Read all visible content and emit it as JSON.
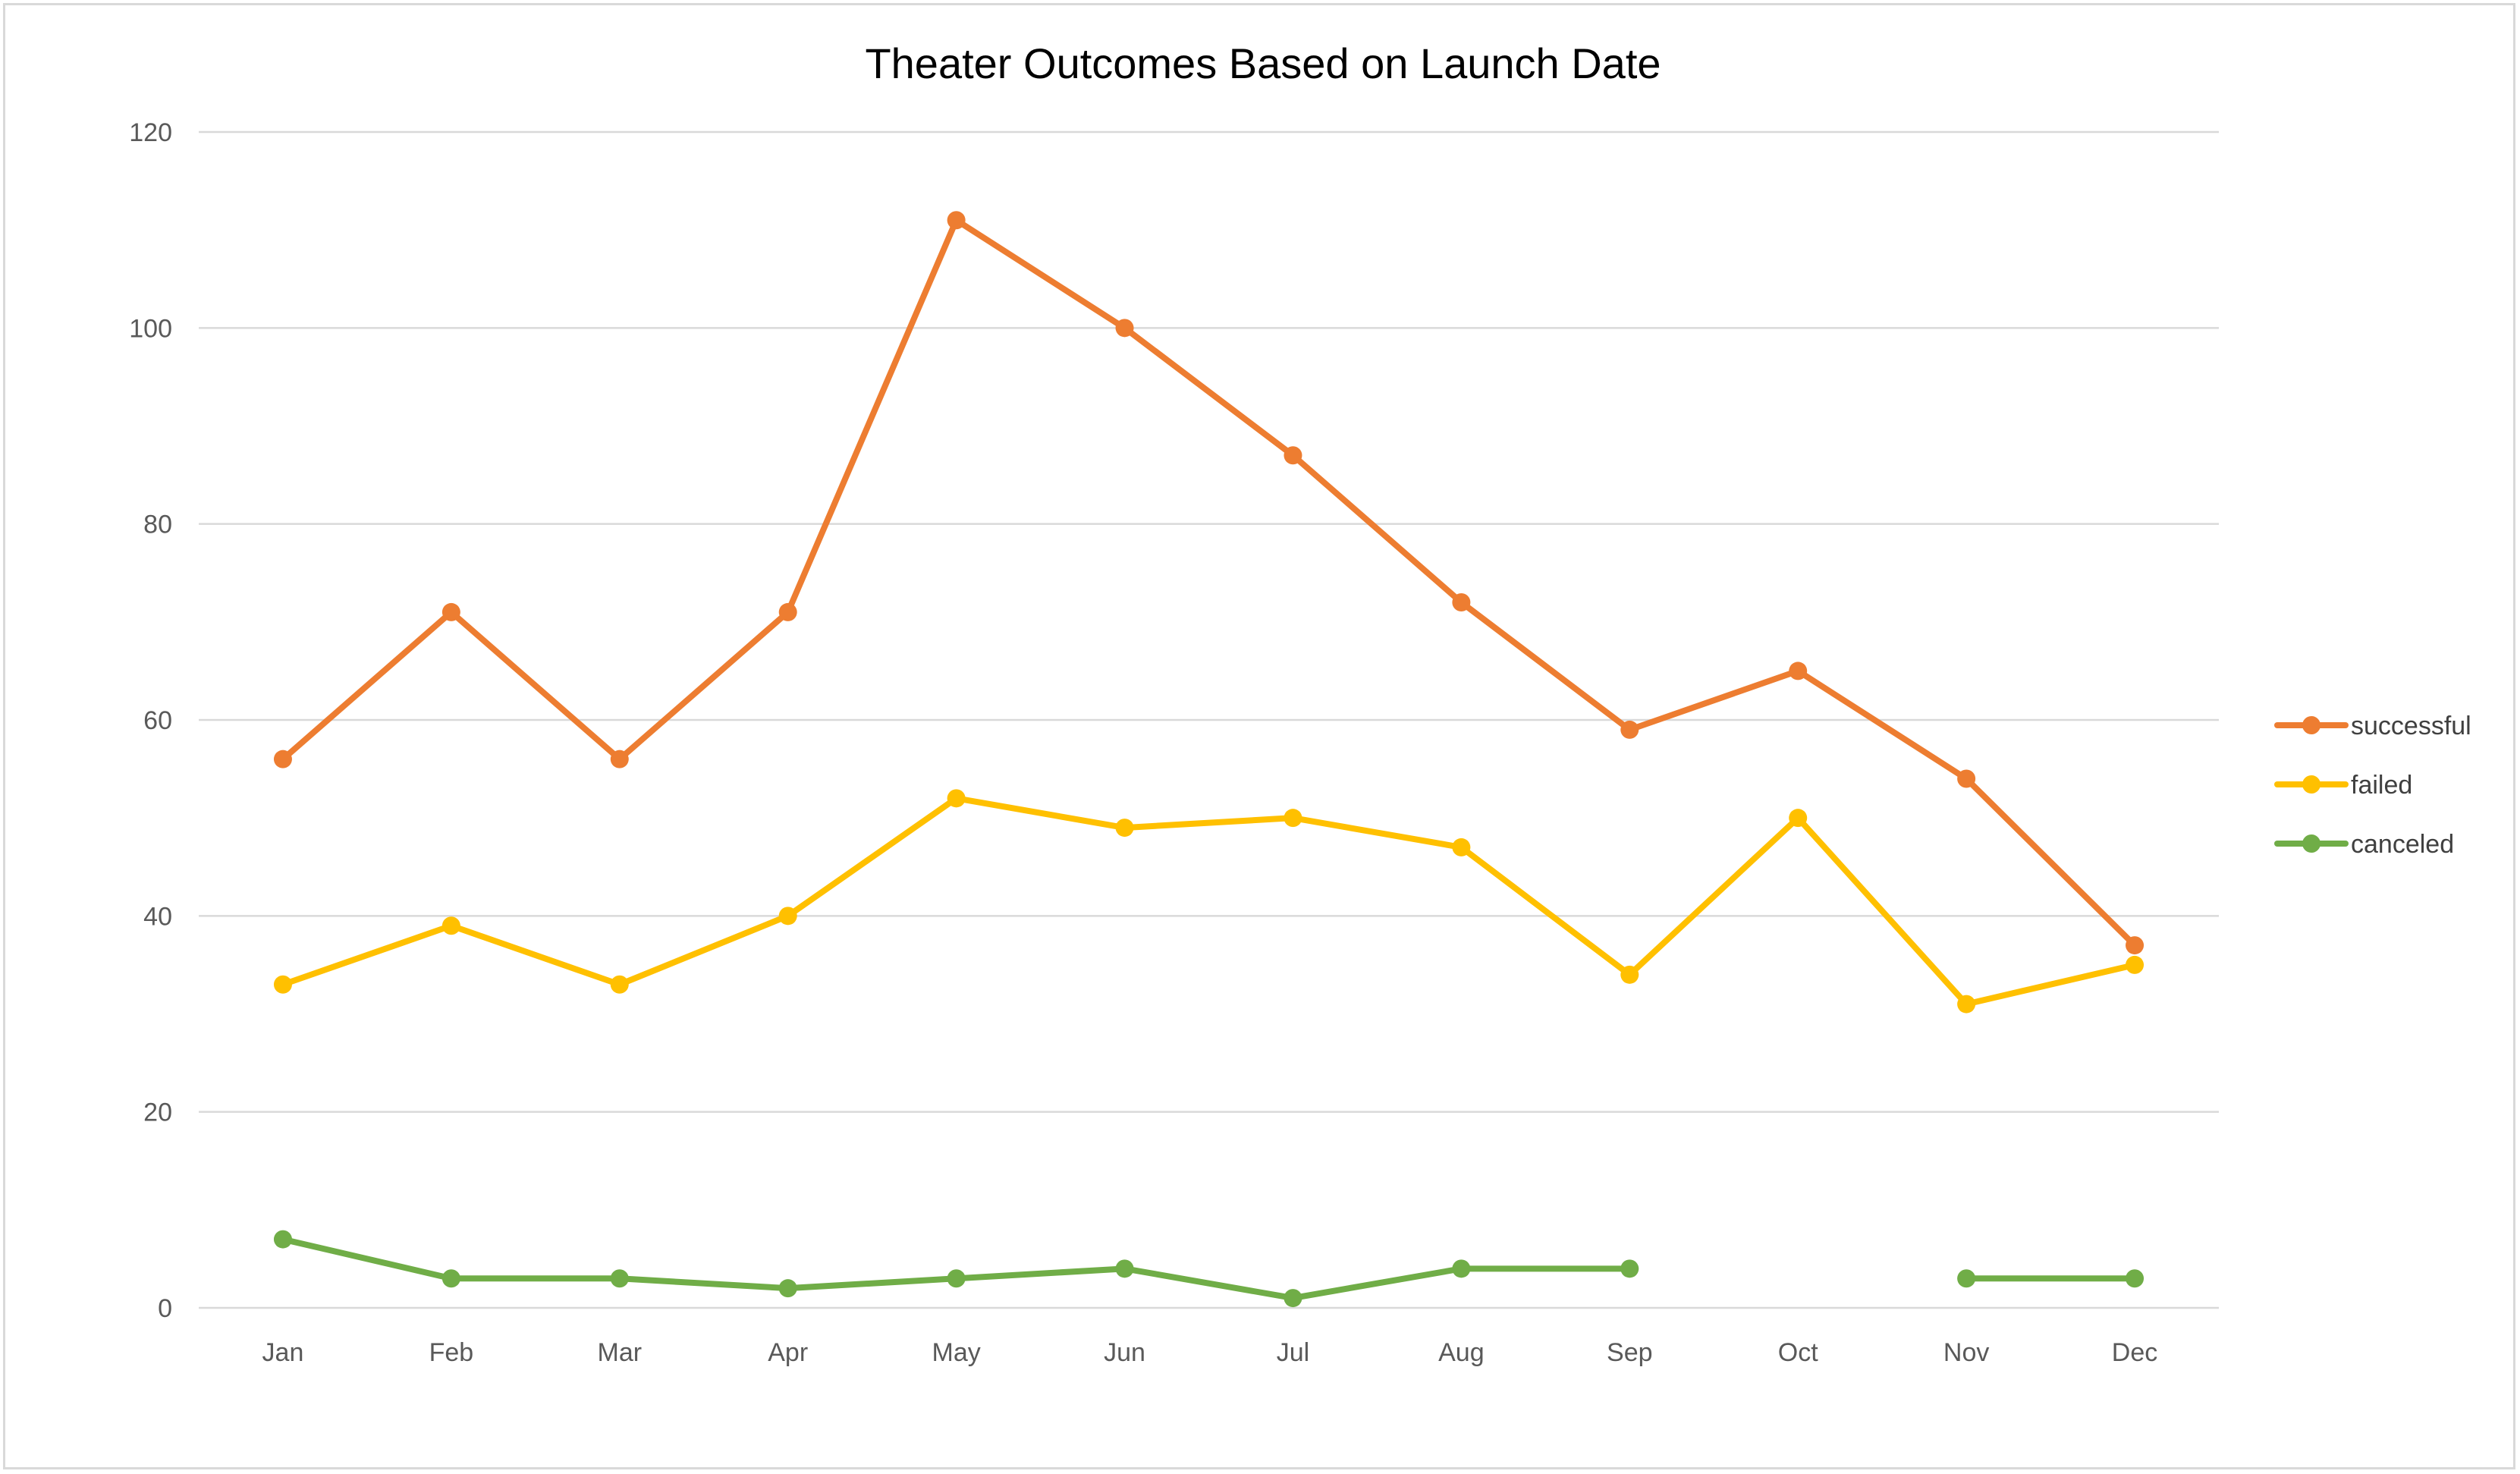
{
  "chart_data": {
    "type": "line",
    "title": "Theater Outcomes Based on Launch Date",
    "xlabel": "",
    "ylabel": "",
    "categories": [
      "Jan",
      "Feb",
      "Mar",
      "Apr",
      "May",
      "Jun",
      "Jul",
      "Aug",
      "Sep",
      "Oct",
      "Nov",
      "Dec"
    ],
    "ylim": [
      0,
      120
    ],
    "yticks": [
      0,
      20,
      40,
      60,
      80,
      100,
      120
    ],
    "grid": true,
    "legend_position": "right",
    "series": [
      {
        "name": "successful",
        "color": "#ED7D31",
        "values": [
          56,
          71,
          56,
          71,
          111,
          100,
          87,
          72,
          59,
          65,
          54,
          37
        ]
      },
      {
        "name": "failed",
        "color": "#FFC000",
        "values": [
          33,
          39,
          33,
          40,
          52,
          49,
          50,
          47,
          34,
          50,
          31,
          35
        ]
      },
      {
        "name": "canceled",
        "color": "#70AD47",
        "values": [
          7,
          3,
          3,
          2,
          3,
          4,
          1,
          4,
          4,
          null,
          3,
          3
        ]
      }
    ]
  }
}
